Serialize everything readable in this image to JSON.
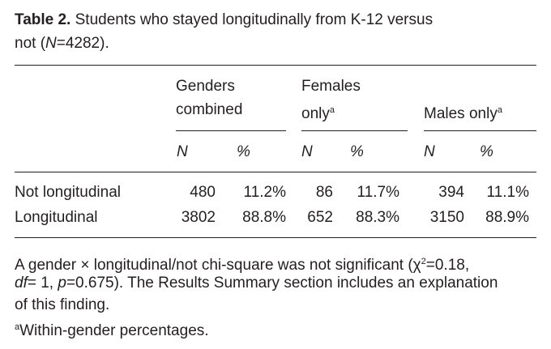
{
  "caption": {
    "label": "Table 2.",
    "parts": [
      "Students who stayed longitudinally from K-12 versus",
      "not (",
      "N",
      "=4282)."
    ]
  },
  "table": {
    "groups": [
      {
        "name": "Genders",
        "name2": "combined"
      },
      {
        "name": "Females",
        "name2": "only",
        "mark": "a"
      },
      {
        "name": "Males only",
        "mark": "a"
      }
    ],
    "subheaders": [
      "N",
      "%",
      "N",
      "%",
      "N",
      "%"
    ],
    "rows": [
      [
        "Not longitudinal",
        "480",
        "11.2%",
        "86",
        "11.7%",
        "394",
        "11.1%"
      ],
      [
        "Longitudinal",
        "3802",
        "88.8%",
        "652",
        "88.3%",
        "3150",
        "88.9%"
      ]
    ]
  },
  "footnote": {
    "parts": [
      "A gender × longitudinal/not chi-square was not significant (χ",
      "2",
      "=0.18,",
      "df",
      "= 1, ",
      "p",
      "=0.675). The Results Summary section includes an explanation",
      "of this finding."
    ],
    "note_mark": "a",
    "note": "Within-gender percentages."
  }
}
